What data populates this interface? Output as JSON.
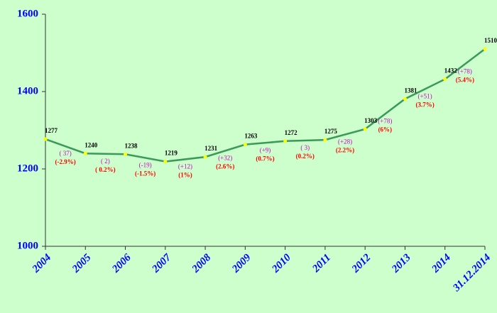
{
  "chart_data": {
    "type": "line",
    "categories": [
      "2004",
      "2005",
      "2006",
      "2007",
      "2008",
      "2009",
      "2010",
      "2011",
      "2012",
      "2013",
      "2014",
      "31.12.2014"
    ],
    "values": [
      1277,
      1240,
      1238,
      1219,
      1231,
      1263,
      1272,
      1275,
      1303,
      1381,
      1432,
      1510
    ],
    "color": "#3a9a5a",
    "marker_color": "#ffff00",
    "change_labels": [
      "( 37)",
      "( 2)",
      "(-19)",
      "(+12)",
      "(+32)",
      "(+9)",
      "( 3)",
      "(+28)",
      "(+78)",
      "(+51)",
      "(+78)"
    ],
    "percent_labels": [
      "(-2.9%)",
      "( 0.2%)",
      "(-1.5%)",
      "(1%)",
      "(2.6%)",
      "(0.7%)",
      "(0.2%)",
      "(2.2%)",
      "(6%)",
      "(3.7%)",
      "(5.4%)"
    ],
    "ylim": [
      1000,
      1600
    ],
    "yticks": [
      1000,
      1200,
      1400,
      1600
    ],
    "grid": false
  }
}
